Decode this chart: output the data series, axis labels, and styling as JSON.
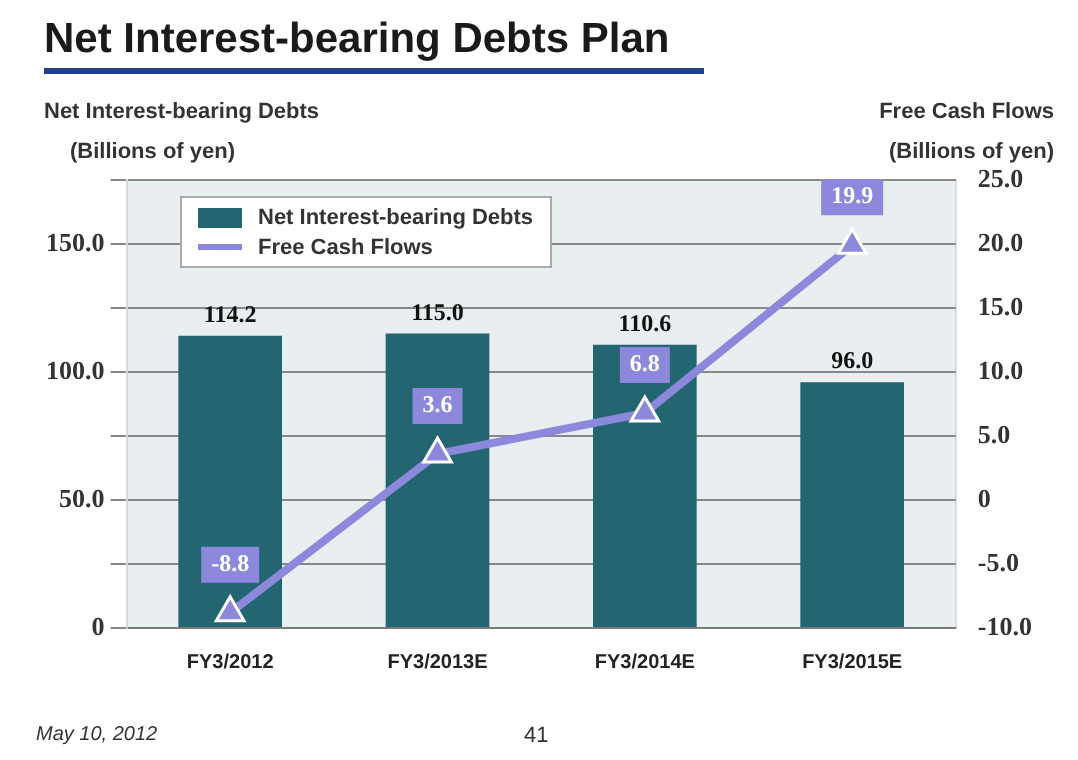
{
  "chart_data": {
    "type": "bar",
    "title": "Net Interest-bearing Debts Plan",
    "ylabel": "Net Interest-bearing Debts",
    "y2label": "Free Cash Flows",
    "categories": [
      "FY3/2012",
      "FY3/2013E",
      "FY3/2014E",
      "FY3/2015E"
    ],
    "series": [
      {
        "name": "Net Interest-bearing Debts",
        "color": "#236570",
        "values": [
          114.2,
          115.0,
          110.6,
          96.0
        ],
        "value_labels": [
          "114.2",
          "115.0",
          "110.6",
          "96.0"
        ]
      },
      {
        "name": "Free Cash Flows",
        "type": "line",
        "axis": "y2",
        "color": "#8c88dc",
        "marker": "triangle",
        "values": [
          -8.8,
          3.6,
          6.8,
          19.9
        ],
        "value_labels": [
          "-8.8",
          "3.6",
          "6.8",
          "19.9"
        ]
      }
    ],
    "ylim": [
      0,
      175
    ],
    "yticks": [
      0,
      {
        "value": 25,
        "label": null
      },
      {
        "value": 50,
        "label": "50.0"
      },
      {
        "value": 75,
        "label": null
      },
      {
        "value": 100,
        "label": "100.0"
      },
      {
        "value": 125,
        "label": null
      },
      {
        "value": 150,
        "label": "150.0"
      },
      {
        "value": 175,
        "label": null
      }
    ],
    "y2lim": [
      -10,
      25
    ],
    "y2ticks": [
      {
        "value": -10,
        "label": "-10.0"
      },
      {
        "value": -5,
        "label": "-5.0"
      },
      0,
      {
        "value": 5,
        "label": "5.0"
      },
      {
        "value": 10,
        "label": "10.0"
      },
      {
        "value": 15,
        "label": "15.0"
      },
      {
        "value": 20,
        "label": "20.0"
      },
      {
        "value": 25,
        "label": "25.0"
      }
    ],
    "grid": "y",
    "legend": "top left",
    "annotations": [
      "(Billions of yen)",
      "(Billions of yen)",
      "May 10, 2012",
      "41"
    ]
  }
}
